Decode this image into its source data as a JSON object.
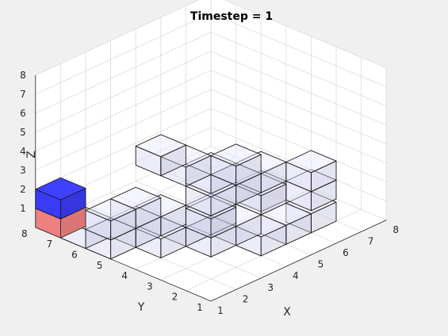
{
  "chart_data": {
    "type": "3d-voxel",
    "title": "Timestep = 1",
    "xlabel": "X",
    "ylabel": "Y",
    "zlabel": "Z",
    "xlim": [
      1,
      8
    ],
    "ylim": [
      1,
      8
    ],
    "zlim": [
      0,
      8
    ],
    "xticks": [
      "1",
      "2",
      "3",
      "4",
      "5",
      "6",
      "7",
      "8"
    ],
    "yticks": [
      "1",
      "2",
      "3",
      "4",
      "5",
      "6",
      "7",
      "8"
    ],
    "zticks": [
      "1",
      "2",
      "3",
      "4",
      "5",
      "6",
      "7",
      "8"
    ],
    "grid": true,
    "colors": {
      "background": "#f0f0f0",
      "axes": "#ffffff",
      "grid": "#dcdcdc",
      "wall": "#262626",
      "empty_cell": "#d8d8f2",
      "agent": "#3b3bf5",
      "target": "#ee8080"
    },
    "empty_cells": [
      [
        1,
        5,
        0
      ],
      [
        1,
        6,
        0
      ],
      [
        1,
        5,
        1
      ],
      [
        2,
        4,
        0
      ],
      [
        2,
        5,
        0
      ],
      [
        2,
        5,
        1
      ],
      [
        3,
        3,
        0
      ],
      [
        3,
        4,
        0
      ],
      [
        3,
        5,
        0
      ],
      [
        3,
        3,
        1
      ],
      [
        4,
        2,
        0
      ],
      [
        4,
        3,
        0
      ],
      [
        4,
        4,
        0
      ],
      [
        4,
        4,
        1
      ],
      [
        5,
        4,
        1
      ],
      [
        5,
        3,
        1
      ],
      [
        5,
        5,
        1
      ],
      [
        5,
        2,
        0
      ],
      [
        6,
        2,
        0
      ],
      [
        6,
        4,
        0
      ],
      [
        7,
        3,
        0
      ],
      [
        7,
        3,
        1
      ],
      [
        6,
        4,
        1
      ],
      [
        4,
        5,
        2
      ],
      [
        4,
        6,
        2
      ],
      [
        5,
        4,
        2
      ]
    ],
    "agent_cells": [
      [
        1,
        7,
        1
      ]
    ],
    "target_cells": [
      [
        1,
        7,
        0
      ]
    ]
  }
}
